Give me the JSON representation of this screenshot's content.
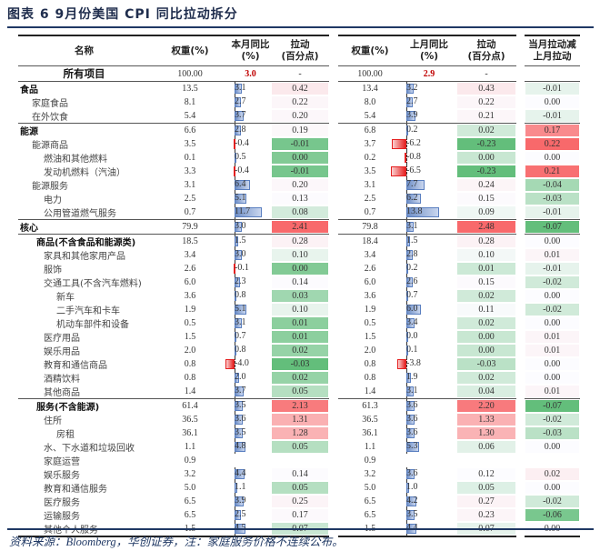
{
  "title": "图表 6   9月份美国 CPI 同比拉动拆分",
  "source": "资料来源：Bloomberg，华创证券，注：家庭服务价格不连续公布。",
  "headers": {
    "name": "名称",
    "weight": "权重(%)",
    "yoy_cur_1": "本月同比",
    "yoy_cur_2": "(%)",
    "contrib_1": "拉动",
    "contrib_2": "(百分点)",
    "weight_prev": "权重(%)",
    "yoy_prev_1": "上月同比",
    "yoy_prev_2": "(%)",
    "contrib_prev_1": "拉动",
    "contrib_prev_2": "(百分点)",
    "diff_1": "当月拉动减",
    "diff_2": "上月拉动"
  },
  "all_items": {
    "name": "所有项目",
    "w1": "100.00",
    "y1": "3.0",
    "c1": "-",
    "w2": "100.00",
    "y2": "2.9",
    "c2": "-",
    "d": ""
  },
  "colors": {
    "bar_positive": "#6f8fc7",
    "bar_negative": "#e52020",
    "scale_low": "#63be7b",
    "scale_high": "#f8696b"
  },
  "rows": [
    {
      "name": "食品",
      "level": 0,
      "bold": true,
      "w1": "13.5",
      "y1": 3.1,
      "c1": "0.42",
      "w2": "13.4",
      "y2": 3.2,
      "c2": "0.43",
      "d": "-0.01"
    },
    {
      "name": "家庭食品",
      "level": 1,
      "bold": false,
      "w1": "8.1",
      "y1": 2.7,
      "c1": "0.22",
      "w2": "8.0",
      "y2": 2.7,
      "c2": "0.22",
      "d": "0.00"
    },
    {
      "name": "在外饮食",
      "level": 1,
      "bold": false,
      "w1": "5.4",
      "y1": 3.7,
      "c1": "0.20",
      "w2": "5.4",
      "y2": 3.9,
      "c2": "0.21",
      "d": "-0.01"
    },
    {
      "name": "能源",
      "level": 0,
      "bold": true,
      "w1": "6.6",
      "y1": 2.8,
      "c1": "0.19",
      "w2": "6.8",
      "y2": 0.2,
      "c2": "0.02",
      "d": "0.17"
    },
    {
      "name": "能源商品",
      "level": 1,
      "bold": false,
      "w1": "3.5",
      "y1": -0.4,
      "c1": "-0.01",
      "w2": "3.7",
      "y2": -6.2,
      "c2": "-0.23",
      "d": "0.22"
    },
    {
      "name": "燃油和其他燃料",
      "level": 2,
      "bold": false,
      "w1": "0.1",
      "y1": 0.5,
      "c1": "0.00",
      "w2": "0.2",
      "y2": -0.8,
      "c2": "0.00",
      "d": "0.00"
    },
    {
      "name": "发动机燃料（汽油）",
      "level": 2,
      "bold": false,
      "w1": "3.3",
      "y1": -0.4,
      "c1": "-0.01",
      "w2": "3.5",
      "y2": -6.5,
      "c2": "-0.23",
      "d": "0.21"
    },
    {
      "name": "能源服务",
      "level": 1,
      "bold": false,
      "w1": "3.1",
      "y1": 6.4,
      "c1": "0.20",
      "w2": "3.1",
      "y2": 7.7,
      "c2": "0.24",
      "d": "-0.04"
    },
    {
      "name": "电力",
      "level": 2,
      "bold": false,
      "w1": "2.5",
      "y1": 5.1,
      "c1": "0.13",
      "w2": "2.5",
      "y2": 6.2,
      "c2": "0.15",
      "d": "-0.03"
    },
    {
      "name": "公用管道燃气服务",
      "level": 2,
      "bold": false,
      "w1": "0.7",
      "y1": 11.7,
      "c1": "0.08",
      "w2": "0.7",
      "y2": 13.8,
      "c2": "0.09",
      "d": "-0.01"
    },
    {
      "name": "核心",
      "level": 0,
      "bold": true,
      "w1": "79.9",
      "y1": 3.0,
      "c1": "2.41",
      "w2": "79.8",
      "y2": 3.1,
      "c2": "2.48",
      "d": "-0.07"
    },
    {
      "name": "商品(不含食品和能源类)",
      "level": 1.5,
      "bold": true,
      "w1": "18.5",
      "y1": 1.5,
      "c1": "0.28",
      "w2": "18.4",
      "y2": 1.5,
      "c2": "0.28",
      "d": "0.00"
    },
    {
      "name": "家具和其他家用产品",
      "level": 2,
      "bold": false,
      "w1": "3.4",
      "y1": 3.0,
      "c1": "0.10",
      "w2": "3.4",
      "y2": 2.8,
      "c2": "0.10",
      "d": "0.01"
    },
    {
      "name": "服饰",
      "level": 2,
      "bold": false,
      "w1": "2.6",
      "y1": -0.1,
      "c1": "0.00",
      "w2": "2.6",
      "y2": 0.2,
      "c2": "0.01",
      "d": "-0.01"
    },
    {
      "name": "交通工具(不含汽车燃料)",
      "level": 2,
      "bold": false,
      "w1": "6.0",
      "y1": 2.3,
      "c1": "0.14",
      "w2": "6.0",
      "y2": 2.6,
      "c2": "0.15",
      "d": "-0.02"
    },
    {
      "name": "新车",
      "level": 3,
      "bold": false,
      "w1": "3.6",
      "y1": 0.8,
      "c1": "0.03",
      "w2": "3.6",
      "y2": 0.7,
      "c2": "0.02",
      "d": "0.00"
    },
    {
      "name": "二手汽车和卡车",
      "level": 3,
      "bold": false,
      "w1": "1.9",
      "y1": 5.1,
      "c1": "0.10",
      "w2": "1.9",
      "y2": 6.0,
      "c2": "0.11",
      "d": "-0.02"
    },
    {
      "name": "机动车部件和设备",
      "level": 3,
      "bold": false,
      "w1": "0.5",
      "y1": 3.1,
      "c1": "0.01",
      "w2": "0.5",
      "y2": 3.4,
      "c2": "0.02",
      "d": "0.00"
    },
    {
      "name": "医疗用品",
      "level": 2,
      "bold": false,
      "w1": "1.5",
      "y1": 0.7,
      "c1": "0.01",
      "w2": "1.5",
      "y2": 0.0,
      "c2": "0.00",
      "d": "0.01"
    },
    {
      "name": "娱乐用品",
      "level": 2,
      "bold": false,
      "w1": "2.0",
      "y1": 0.8,
      "c1": "0.02",
      "w2": "2.0",
      "y2": 0.1,
      "c2": "0.00",
      "d": "0.01"
    },
    {
      "name": "教育和通信商品",
      "level": 2,
      "bold": false,
      "w1": "0.8",
      "y1": -4.0,
      "c1": "-0.03",
      "w2": "0.8",
      "y2": -3.8,
      "c2": "-0.03",
      "d": "0.00"
    },
    {
      "name": "酒精饮料",
      "level": 2,
      "bold": false,
      "w1": "0.8",
      "y1": 2.0,
      "c1": "0.02",
      "w2": "0.8",
      "y2": 1.9,
      "c2": "0.02",
      "d": "0.00"
    },
    {
      "name": "其他商品",
      "level": 2,
      "bold": false,
      "w1": "1.4",
      "y1": 3.7,
      "c1": "0.05",
      "w2": "1.4",
      "y2": 3.1,
      "c2": "0.04",
      "d": "0.01"
    },
    {
      "name": "服务(不含能源)",
      "level": 1.5,
      "bold": true,
      "w1": "61.4",
      "y1": 3.5,
      "c1": "2.13",
      "w2": "61.3",
      "y2": 3.6,
      "c2": "2.20",
      "d": "-0.07"
    },
    {
      "name": "住所",
      "level": 2,
      "bold": false,
      "w1": "36.5",
      "y1": 3.6,
      "c1": "1.31",
      "w2": "36.5",
      "y2": 3.6,
      "c2": "1.33",
      "d": "-0.02"
    },
    {
      "name": "房租",
      "level": 3,
      "bold": false,
      "w1": "36.1",
      "y1": 3.5,
      "c1": "1.28",
      "w2": "36.1",
      "y2": 3.6,
      "c2": "1.30",
      "d": "-0.03"
    },
    {
      "name": "水、下水道和垃圾回收",
      "level": 2,
      "bold": false,
      "w1": "1.1",
      "y1": 4.8,
      "c1": "0.05",
      "w2": "1.1",
      "y2": 5.3,
      "c2": "0.06",
      "d": "0.00"
    },
    {
      "name": "家庭运营",
      "level": 2,
      "bold": false,
      "w1": "0.9",
      "y1": null,
      "c1": "",
      "w2": "0.9",
      "y2": null,
      "c2": "",
      "d": ""
    },
    {
      "name": "娱乐服务",
      "level": 2,
      "bold": false,
      "w1": "3.2",
      "y1": 4.4,
      "c1": "0.14",
      "w2": "3.2",
      "y2": 3.6,
      "c2": "0.12",
      "d": "0.02"
    },
    {
      "name": "教育和通信服务",
      "level": 2,
      "bold": false,
      "w1": "5.0",
      "y1": 1.1,
      "c1": "0.05",
      "w2": "5.0",
      "y2": 1.0,
      "c2": "0.05",
      "d": "0.00"
    },
    {
      "name": "医疗服务",
      "level": 2,
      "bold": false,
      "w1": "6.5",
      "y1": 3.9,
      "c1": "0.25",
      "w2": "6.5",
      "y2": 4.2,
      "c2": "0.27",
      "d": "-0.02"
    },
    {
      "name": "运输服务",
      "level": 2,
      "bold": false,
      "w1": "6.5",
      "y1": 2.5,
      "c1": "0.17",
      "w2": "6.5",
      "y2": 3.5,
      "c2": "0.23",
      "d": "-0.06"
    },
    {
      "name": "其他个人服务",
      "level": 2,
      "bold": false,
      "w1": "1.5",
      "y1": 4.5,
      "c1": "0.07",
      "w2": "1.5",
      "y2": 4.4,
      "c2": "0.07",
      "d": "0.00"
    }
  ]
}
